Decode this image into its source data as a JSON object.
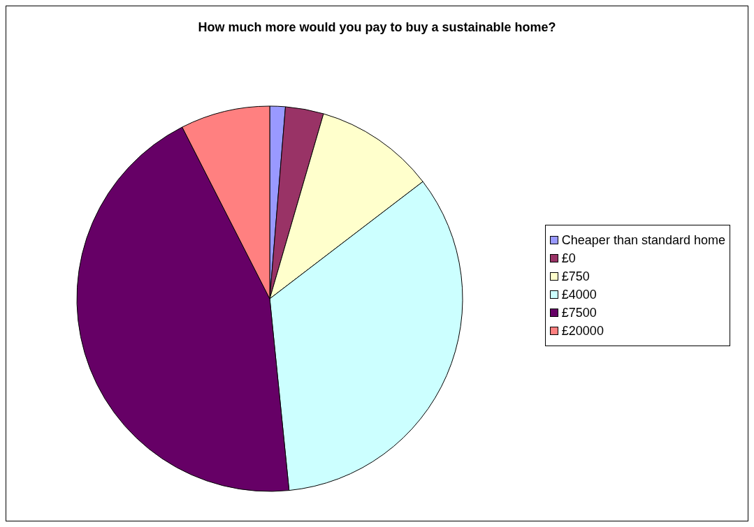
{
  "chart_data": {
    "type": "pie",
    "title": "How much more would you pay to buy a sustainable home?",
    "categories": [
      "Cheaper than standard home",
      "£0",
      "£750",
      "£4000",
      "£7500",
      "£20000"
    ],
    "values": [
      1.3,
      3.2,
      10.1,
      33.8,
      44.1,
      7.5
    ],
    "colors": [
      "#9999ff",
      "#993366",
      "#ffffcc",
      "#ccffff",
      "#660066",
      "#ff8080"
    ],
    "legend": "right"
  }
}
